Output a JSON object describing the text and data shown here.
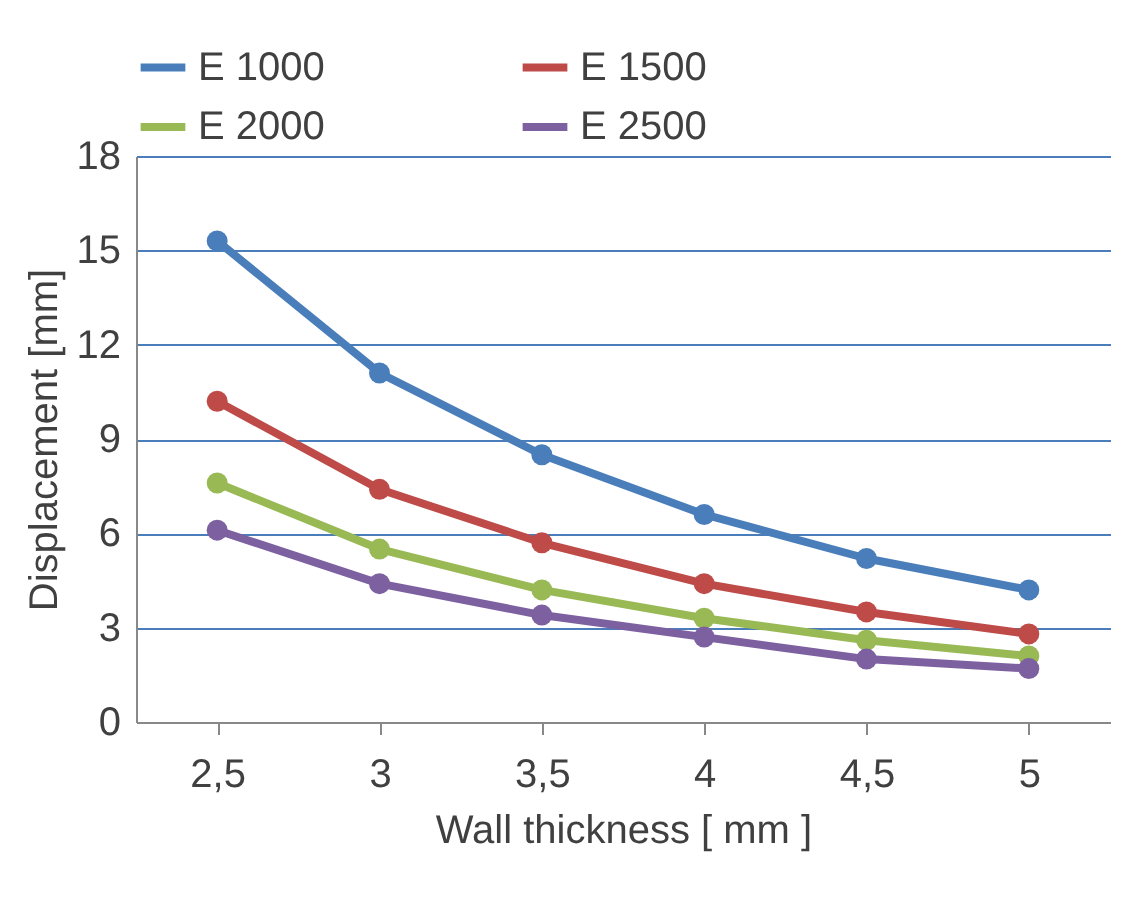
{
  "chart_data": {
    "type": "line",
    "xlabel": "Wall thickness  [ mm ]",
    "ylabel": "Displacement [mm]",
    "categories": [
      "2,5",
      "3",
      "3,5",
      "4",
      "4,5",
      "5"
    ],
    "series": [
      {
        "name": "E 1000",
        "color": "#4a7ebb",
        "values": [
          15.3,
          11.1,
          8.5,
          6.6,
          5.2,
          4.2
        ]
      },
      {
        "name": "E 1500",
        "color": "#be4b48",
        "values": [
          10.2,
          7.4,
          5.7,
          4.4,
          3.5,
          2.8
        ]
      },
      {
        "name": "E 2000",
        "color": "#98b954",
        "values": [
          7.6,
          5.5,
          4.2,
          3.3,
          2.6,
          2.1
        ]
      },
      {
        "name": "E 2500",
        "color": "#7d60a0",
        "values": [
          6.1,
          4.4,
          3.4,
          2.7,
          2.0,
          1.7
        ]
      }
    ],
    "ylim": [
      0,
      18
    ],
    "yticks": [
      0,
      3,
      6,
      9,
      12,
      15,
      18
    ],
    "grid": "y",
    "legend": "top",
    "marker": "circle",
    "line_style": "solid"
  }
}
